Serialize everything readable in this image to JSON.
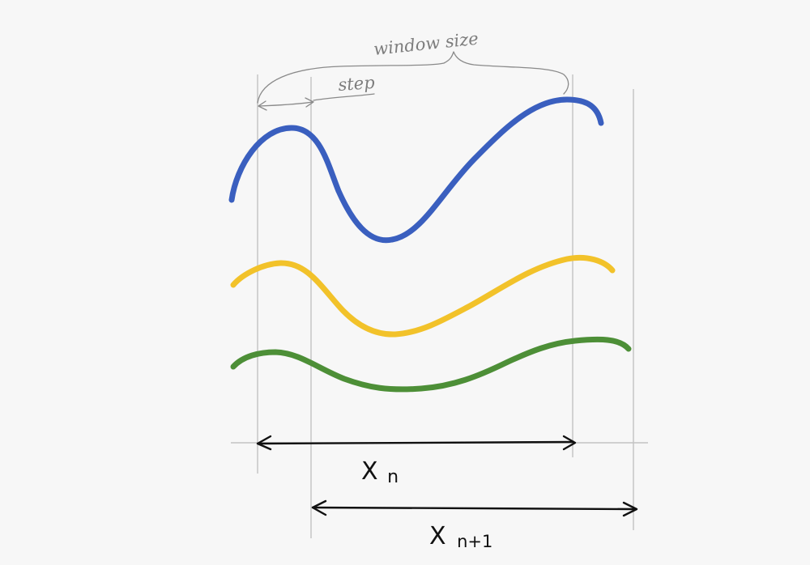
{
  "annotations": {
    "window_size": "window size",
    "step": "step"
  },
  "labels": {
    "xn_main": "X",
    "xn_sub": "n",
    "xn1_main": "X",
    "xn1_sub": "n+1"
  },
  "colors": {
    "background": "#f7f7f7",
    "signal_1": "#3a5fbf",
    "signal_2": "#f2c22a",
    "signal_3": "#4d8f37",
    "ink": "#111111",
    "pencil": "#8a8a8a"
  }
}
